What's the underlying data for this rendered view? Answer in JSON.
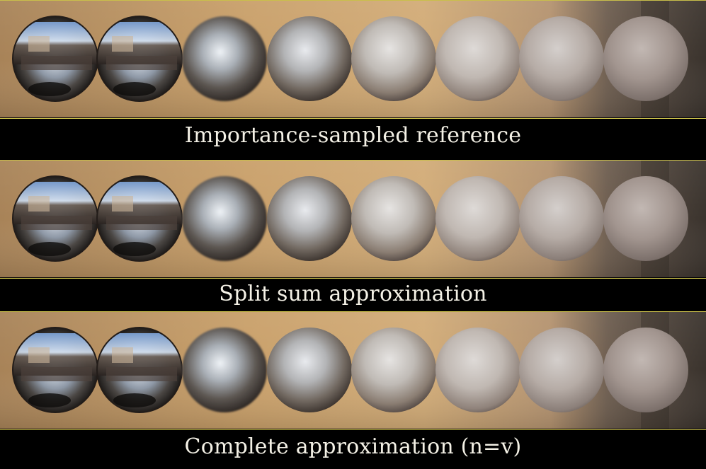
{
  "captions": {
    "panel1": "Importance-sampled reference",
    "panel2": "Split sum approximation",
    "panel3": "Complete approximation (n=v)"
  },
  "colors": {
    "background": "#000000",
    "divider": "#c9bf4a",
    "caption_text": "#f4f1e6",
    "backdrop_warm": "#c89e68",
    "backdrop_dark": "#5a4c40"
  },
  "sphere_count": 8
}
